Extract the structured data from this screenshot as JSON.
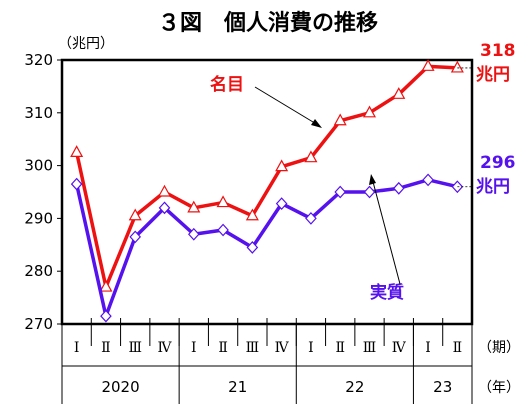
{
  "chart_data": {
    "type": "line",
    "title": "３図　個人消費の推移",
    "ylabel": "（兆円）",
    "period_unit": "（期）",
    "year_unit": "（年）",
    "ylim": [
      270,
      320
    ],
    "yticks": [
      "270",
      "280",
      "290",
      "300",
      "310",
      "320"
    ],
    "categories": [
      "Ⅰ",
      "Ⅱ",
      "Ⅲ",
      "Ⅳ",
      "Ⅰ",
      "Ⅱ",
      "Ⅲ",
      "Ⅳ",
      "Ⅰ",
      "Ⅱ",
      "Ⅲ",
      "Ⅳ",
      "Ⅰ",
      "Ⅱ"
    ],
    "years": [
      {
        "label": "2020",
        "quarters": 4
      },
      {
        "label": "21",
        "quarters": 4
      },
      {
        "label": "22",
        "quarters": 4
      },
      {
        "label": "23",
        "quarters": 2
      }
    ],
    "series": [
      {
        "name": "名目",
        "color": "#ee1111",
        "marker": "triangle",
        "values": [
          302.5,
          277.0,
          290.5,
          295.0,
          292.0,
          293.0,
          290.5,
          299.8,
          301.5,
          308.5,
          310.0,
          313.5,
          318.8,
          318.5
        ],
        "end_value": "318",
        "end_unit": "兆円"
      },
      {
        "name": "実質",
        "color": "#5511ee",
        "marker": "diamond",
        "values": [
          296.5,
          271.5,
          286.5,
          292.0,
          287.0,
          287.8,
          284.5,
          292.8,
          290.0,
          295.0,
          295.0,
          295.7,
          297.3,
          296.0
        ],
        "end_value": "296",
        "end_unit": "兆円"
      }
    ]
  }
}
